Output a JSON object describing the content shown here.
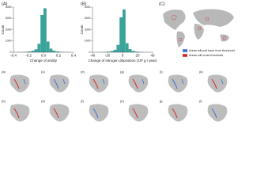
{
  "chart_data": [
    {
      "type": "histogram",
      "panel_label": "(A)",
      "x_label": "Change of aridity",
      "y_label": "Count",
      "bins": [
        -0.4,
        -0.36,
        -0.32,
        -0.28,
        -0.24,
        -0.2,
        -0.16,
        -0.12,
        -0.08,
        -0.04,
        0,
        0.04,
        0.08,
        0.12,
        0.16,
        0.2,
        0.24,
        0.28,
        0.32,
        0.36,
        0.4
      ],
      "values": [
        5,
        10,
        15,
        25,
        40,
        70,
        130,
        260,
        750,
        3300,
        3900,
        950,
        320,
        140,
        70,
        40,
        25,
        15,
        10,
        5
      ],
      "color": "#3aa39a",
      "xlim": [
        -0.4,
        0.4
      ],
      "xticks": [
        -0.4,
        -0.2,
        {
          "value": 0,
          "label": "0.0"
        },
        0.2,
        0.4
      ],
      "ylim": [
        0,
        4000
      ],
      "yticks": [
        0,
        1000,
        2000,
        3000,
        4000
      ]
    },
    {
      "type": "histogram",
      "panel_label": "(B)",
      "x_label": "Change of nitrogen deposition (10³ g / year)",
      "y_label": "Count",
      "bins": [
        -40,
        -36,
        -32,
        -28,
        -24,
        -20,
        -16,
        -12,
        -8,
        -4,
        0,
        4,
        8,
        12,
        16,
        20,
        24,
        28,
        32,
        36,
        40
      ],
      "values": [
        5,
        8,
        12,
        20,
        35,
        60,
        110,
        220,
        650,
        3100,
        3800,
        800,
        280,
        120,
        60,
        35,
        20,
        12,
        8,
        5
      ],
      "color": "#3aa39a",
      "xlim": [
        -40,
        40
      ],
      "xticks": [
        -40,
        -20,
        0,
        20,
        40
      ],
      "ylim": [
        0,
        4000
      ],
      "yticks": [
        0,
        1000,
        2000,
        3000,
        4000
      ]
    }
  ],
  "map": {
    "panel_label": "(C)",
    "legend": [
      {
        "label": "Areas will pull back from threshold",
        "color": "#3b6fd6"
      },
      {
        "label": "Areas will cross threshold",
        "color": "#d62728"
      }
    ]
  },
  "panels": [
    "(a)",
    "(b)",
    "(c)",
    "(d)",
    "(e)",
    "(f)",
    "(g)",
    "(h)",
    "(i)",
    "(j)",
    "(k)",
    "(l)"
  ]
}
